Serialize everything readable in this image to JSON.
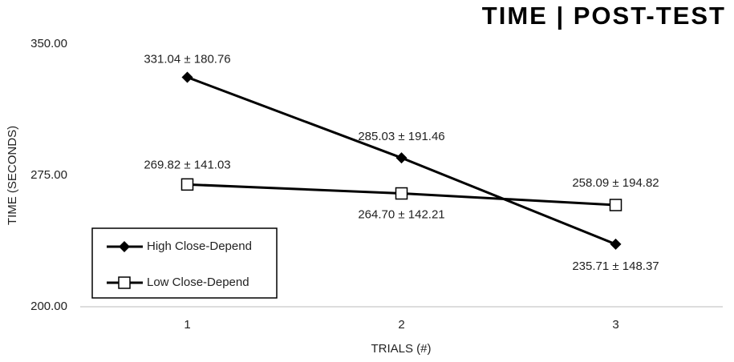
{
  "chart_data": {
    "type": "line",
    "title": "TIME | POST-TEST",
    "x_label": "TRIALS (#)",
    "y_label": "TIME (SECONDS)",
    "categories": [
      "1",
      "2",
      "3"
    ],
    "series": [
      {
        "name": "High Close-Depend",
        "color": "#000000",
        "marker": "diamond",
        "values": [
          331.04,
          285.03,
          235.71
        ],
        "value_labels": [
          "331.04 ± 180.76",
          "285.03 ± 191.46",
          "235.71 ± 148.37"
        ]
      },
      {
        "name": "Low Close-Depend",
        "color": "#000000",
        "marker": "square",
        "values": [
          269.82,
          264.7,
          258.09
        ],
        "value_labels": [
          "269.82 ± 141.03",
          "264.70 ± 142.21",
          "258.09 ± 194.82"
        ]
      }
    ],
    "ylim": [
      200,
      350
    ],
    "yticks": [
      {
        "value": 200,
        "label": "200.00"
      },
      {
        "value": 275,
        "label": "275.00"
      },
      {
        "value": 350,
        "label": "350.00"
      }
    ],
    "grid": false,
    "legend": "lower-left"
  }
}
